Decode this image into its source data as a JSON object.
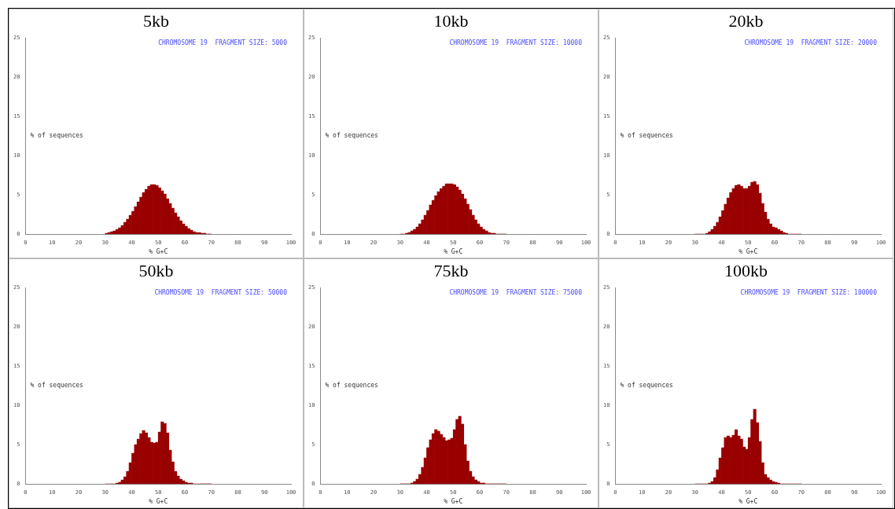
{
  "chart_data": [
    {
      "type": "histogram",
      "title": "5kb",
      "xlabel": "% G+C",
      "ylabel": "% of sequences",
      "annotations": [
        "CHROMOSOME 19  FRAGMENT SIZE: 5000"
      ],
      "color": "#990000",
      "xlim": [
        0,
        100
      ],
      "xticks": [
        0,
        10,
        20,
        30,
        40,
        50,
        60,
        70,
        80,
        90,
        100
      ],
      "ylim": [
        0,
        25
      ],
      "yticks": [
        0,
        5,
        10,
        15,
        20,
        25
      ],
      "bins": [
        30,
        31,
        32,
        33,
        34,
        35,
        36,
        37,
        38,
        39,
        40,
        41,
        42,
        43,
        44,
        45,
        46,
        47,
        48,
        49,
        50,
        51,
        52,
        53,
        54,
        55,
        56,
        57,
        58,
        59,
        60,
        61,
        62,
        63,
        64,
        65,
        66,
        67,
        68,
        69,
        70
      ],
      "values": [
        0.1,
        0.2,
        0.3,
        0.4,
        0.6,
        0.8,
        1.1,
        1.5,
        1.9,
        2.4,
        2.9,
        3.5,
        4.1,
        4.7,
        5.3,
        5.7,
        6.1,
        6.3,
        6.3,
        6.2,
        5.9,
        5.5,
        5.1,
        4.5,
        3.9,
        3.3,
        2.7,
        2.2,
        1.7,
        1.3,
        1.0,
        0.7,
        0.5,
        0.3,
        0.2,
        0.2,
        0.1,
        0.1,
        0,
        0
      ]
    },
    {
      "type": "histogram",
      "title": "10kb",
      "xlabel": "% G+C",
      "ylabel": "% of sequences",
      "annotations": [
        "CHROMOSOME 19  FRAGMENT SIZE: 10000"
      ],
      "color": "#990000",
      "xlim": [
        0,
        100
      ],
      "xticks": [
        0,
        10,
        20,
        30,
        40,
        50,
        60,
        70,
        80,
        90,
        100
      ],
      "ylim": [
        0,
        25
      ],
      "yticks": [
        0,
        5,
        10,
        15,
        20,
        25
      ],
      "bins": [
        30,
        31,
        32,
        33,
        34,
        35,
        36,
        37,
        38,
        39,
        40,
        41,
        42,
        43,
        44,
        45,
        46,
        47,
        48,
        49,
        50,
        51,
        52,
        53,
        54,
        55,
        56,
        57,
        58,
        59,
        60,
        61,
        62,
        63,
        64,
        65,
        66,
        67,
        68,
        69,
        70
      ],
      "values": [
        0,
        0,
        0.1,
        0.2,
        0.4,
        0.6,
        0.9,
        1.3,
        1.8,
        2.4,
        3.0,
        3.7,
        4.3,
        4.9,
        5.4,
        5.8,
        6.1,
        6.4,
        6.4,
        6.4,
        6.3,
        6.0,
        5.6,
        5.1,
        4.5,
        3.8,
        3.1,
        2.4,
        1.8,
        1.3,
        0.9,
        0.6,
        0.4,
        0.2,
        0.1,
        0.1,
        0,
        0,
        0,
        0
      ]
    },
    {
      "type": "histogram",
      "title": "20kb",
      "xlabel": "% G+C",
      "ylabel": "% of sequences",
      "annotations": [
        "CHROMOSOME 19  FRAGMENT SIZE: 20000"
      ],
      "color": "#990000",
      "xlim": [
        0,
        100
      ],
      "xticks": [
        0,
        10,
        20,
        30,
        40,
        50,
        60,
        70,
        80,
        90,
        100
      ],
      "ylim": [
        0,
        25
      ],
      "yticks": [
        0,
        5,
        10,
        15,
        20,
        25
      ],
      "bins": [
        30,
        31,
        32,
        33,
        34,
        35,
        36,
        37,
        38,
        39,
        40,
        41,
        42,
        43,
        44,
        45,
        46,
        47,
        48,
        49,
        50,
        51,
        52,
        53,
        54,
        55,
        56,
        57,
        58,
        59,
        60,
        61,
        62,
        63,
        64,
        65,
        66,
        67,
        68,
        69,
        70
      ],
      "values": [
        0,
        0,
        0,
        0,
        0.1,
        0.3,
        0.6,
        1.0,
        1.5,
        2.2,
        3.0,
        3.8,
        4.6,
        5.3,
        5.8,
        6.2,
        6.3,
        6.1,
        5.8,
        5.8,
        6.1,
        6.6,
        6.7,
        6.3,
        5.2,
        3.9,
        2.8,
        1.9,
        1.3,
        0.9,
        0.8,
        0.6,
        0.4,
        0.2,
        0.1,
        0,
        0,
        0,
        0,
        0
      ]
    },
    {
      "type": "histogram",
      "title": "50kb",
      "xlabel": "% G+C",
      "ylabel": "% of sequences",
      "annotations": [
        "CHROMOSOME 19  FRAGMENT SIZE: 50000"
      ],
      "color": "#990000",
      "xlim": [
        0,
        100
      ],
      "xticks": [
        0,
        10,
        20,
        30,
        40,
        50,
        60,
        70,
        80,
        90,
        100
      ],
      "ylim": [
        0,
        25
      ],
      "yticks": [
        0,
        5,
        10,
        15,
        20,
        25
      ],
      "bins": [
        30,
        31,
        32,
        33,
        34,
        35,
        36,
        37,
        38,
        39,
        40,
        41,
        42,
        43,
        44,
        45,
        46,
        47,
        48,
        49,
        50,
        51,
        52,
        53,
        54,
        55,
        56,
        57,
        58,
        59,
        60,
        61,
        62,
        63,
        64,
        65,
        66,
        67,
        68,
        69,
        70
      ],
      "values": [
        0,
        0,
        0,
        0,
        0.1,
        0.2,
        0.5,
        0.9,
        1.6,
        2.7,
        3.9,
        5.0,
        5.7,
        6.4,
        6.8,
        6.5,
        5.9,
        5.3,
        5.2,
        5.3,
        6.6,
        7.9,
        7.7,
        6.5,
        4.3,
        2.8,
        1.6,
        1.0,
        0.6,
        0.4,
        0.2,
        0.1,
        0.1,
        0,
        0,
        0,
        0,
        0,
        0,
        0
      ]
    },
    {
      "type": "histogram",
      "title": "75kb",
      "xlabel": "% G+C",
      "ylabel": "% of sequences",
      "annotations": [
        "CHROMOSOME 19  FRAGMENT SIZE: 75000"
      ],
      "color": "#990000",
      "xlim": [
        0,
        100
      ],
      "xticks": [
        0,
        10,
        20,
        30,
        40,
        50,
        60,
        70,
        80,
        90,
        100
      ],
      "ylim": [
        0,
        25
      ],
      "yticks": [
        0,
        5,
        10,
        15,
        20,
        25
      ],
      "bins": [
        30,
        31,
        32,
        33,
        34,
        35,
        36,
        37,
        38,
        39,
        40,
        41,
        42,
        43,
        44,
        45,
        46,
        47,
        48,
        49,
        50,
        51,
        52,
        53,
        54,
        55,
        56,
        57,
        58,
        59,
        60,
        61,
        62,
        63,
        64,
        65,
        66,
        67,
        68,
        69,
        70
      ],
      "values": [
        0,
        0,
        0,
        0,
        0.1,
        0.3,
        0.6,
        1.2,
        2.1,
        3.3,
        4.6,
        5.6,
        6.4,
        6.9,
        6.7,
        6.3,
        5.9,
        5.5,
        5.6,
        5.8,
        6.9,
        8.2,
        8.6,
        7.6,
        5.0,
        2.9,
        1.6,
        0.9,
        0.5,
        0.3,
        0.1,
        0.1,
        0,
        0,
        0,
        0,
        0,
        0,
        0,
        0
      ]
    },
    {
      "type": "histogram",
      "title": "100kb",
      "xlabel": "% G+C",
      "ylabel": "% of sequences",
      "annotations": [
        "CHROMOSOME 19  FRAGMENT SIZE: 100000"
      ],
      "color": "#990000",
      "xlim": [
        0,
        100
      ],
      "xticks": [
        0,
        10,
        20,
        30,
        40,
        50,
        60,
        70,
        80,
        90,
        100
      ],
      "ylim": [
        0,
        25
      ],
      "yticks": [
        0,
        5,
        10,
        15,
        20,
        25
      ],
      "bins": [
        30,
        31,
        32,
        33,
        34,
        35,
        36,
        37,
        38,
        39,
        40,
        41,
        42,
        43,
        44,
        45,
        46,
        47,
        48,
        49,
        50,
        51,
        52,
        53,
        54,
        55,
        56,
        57,
        58,
        59,
        60,
        61,
        62,
        63,
        64,
        65,
        66,
        67,
        68,
        69,
        70
      ],
      "values": [
        0,
        0,
        0,
        0,
        0,
        0.1,
        0.3,
        0.8,
        1.8,
        3.3,
        4.6,
        5.9,
        6.1,
        5.9,
        6.2,
        6.9,
        6.1,
        5.7,
        4.7,
        4.4,
        5.9,
        8.2,
        9.5,
        7.8,
        5.4,
        2.7,
        1.2,
        0.8,
        0.5,
        0.3,
        0.2,
        0.1,
        0,
        0,
        0,
        0,
        0,
        0,
        0,
        0
      ]
    }
  ]
}
